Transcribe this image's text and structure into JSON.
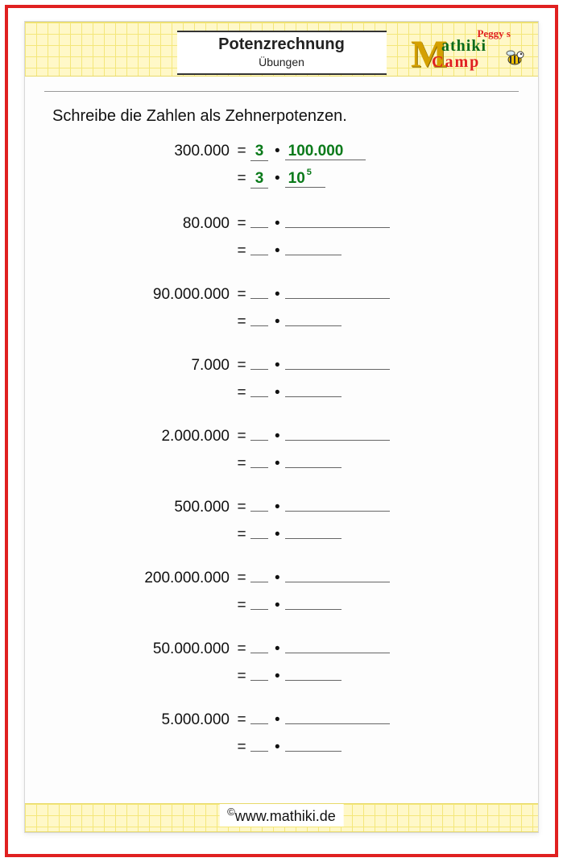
{
  "frame": {
    "border_color": "#e02020"
  },
  "header": {
    "title": "Potenzrechnung",
    "subtitle": "Übungen",
    "grid_bg": "#fff8c8",
    "grid_line": "#f4e77a"
  },
  "logo": {
    "peggy": "Peggy s",
    "m": "M",
    "athiki": "athiki",
    "camp": "Camp",
    "m_color": "#d4a000",
    "athiki_color": "#0a6b1a",
    "camp_color": "#e02020"
  },
  "instruction": "Schreibe die Zahlen als Zehnerpotenzen.",
  "example": {
    "number": "300.000",
    "coef": "3",
    "expanded": "100.000",
    "base": "10",
    "exponent": "5",
    "answer_color": "#0a7a1a"
  },
  "problems": [
    {
      "number": "80.000"
    },
    {
      "number": "90.000.000"
    },
    {
      "number": "7.000"
    },
    {
      "number": "2.000.000"
    },
    {
      "number": "500.000"
    },
    {
      "number": "200.000.000"
    },
    {
      "number": "50.000.000"
    },
    {
      "number": "5.000.000"
    }
  ],
  "footer": {
    "copyright": "©",
    "url": "www.mathiki.de"
  }
}
